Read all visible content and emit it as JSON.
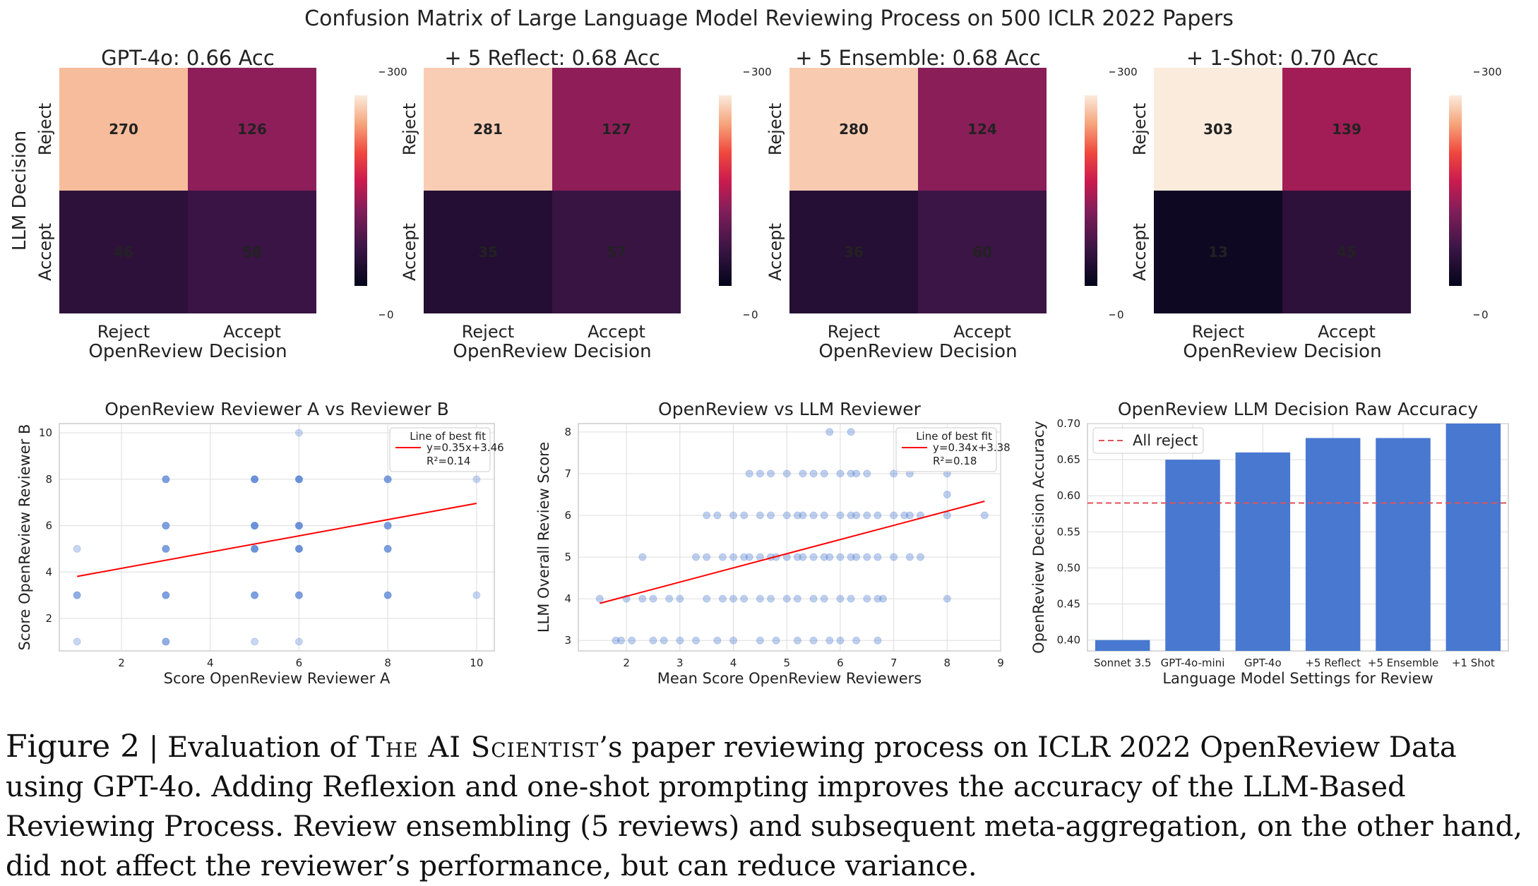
{
  "figure_title": "Confusion Matrix of Large Language Model Reviewing Process on 500 ICLR 2022 Papers",
  "colors": {
    "heat_high": "#faeadc",
    "heat_low": "#03051a",
    "point": "#4878d0",
    "fit_line": "#ff0000",
    "bar": "#4878d0",
    "baseline": "#e0525a",
    "grid": "#dddddd",
    "frame": "#cccccc"
  },
  "chart_data": [
    {
      "type": "heatmap",
      "title": "GPT-4o: 0.66 Acc",
      "xlabel": "OpenReview Decision",
      "ylabel": "LLM Decision",
      "x_categories": [
        "Reject",
        "Accept"
      ],
      "y_categories": [
        "Reject",
        "Accept"
      ],
      "values": [
        [
          270,
          126
        ],
        [
          46,
          58
        ]
      ],
      "colorbar": {
        "range": [
          0,
          300
        ],
        "tick_labels": [
          "300",
          "0"
        ]
      }
    },
    {
      "type": "heatmap",
      "title": "+ 5 Reflect: 0.68 Acc",
      "xlabel": "OpenReview Decision",
      "ylabel": "",
      "x_categories": [
        "Reject",
        "Accept"
      ],
      "y_categories": [
        "Reject",
        "Accept"
      ],
      "values": [
        [
          281,
          127
        ],
        [
          35,
          57
        ]
      ],
      "colorbar": {
        "range": [
          0,
          300
        ],
        "tick_labels": [
          "300",
          "0"
        ]
      }
    },
    {
      "type": "heatmap",
      "title": "+ 5 Ensemble: 0.68 Acc",
      "xlabel": "OpenReview Decision",
      "ylabel": "",
      "x_categories": [
        "Reject",
        "Accept"
      ],
      "y_categories": [
        "Reject",
        "Accept"
      ],
      "values": [
        [
          280,
          124
        ],
        [
          36,
          60
        ]
      ],
      "colorbar": {
        "range": [
          0,
          300
        ],
        "tick_labels": [
          "300",
          "0"
        ]
      }
    },
    {
      "type": "heatmap",
      "title": "+ 1-Shot: 0.70 Acc",
      "xlabel": "OpenReview Decision",
      "ylabel": "",
      "x_categories": [
        "Reject",
        "Accept"
      ],
      "y_categories": [
        "Reject",
        "Accept"
      ],
      "values": [
        [
          303,
          139
        ],
        [
          13,
          45
        ]
      ],
      "colorbar": {
        "range": [
          0,
          300
        ],
        "tick_labels": [
          "300",
          "0"
        ]
      }
    },
    {
      "type": "scatter",
      "title": "OpenReview Reviewer A vs Reviewer B",
      "xlabel": "Score OpenReview Reviewer A",
      "ylabel": "Score OpenReview Reviewer B",
      "xlim": [
        0.6,
        10.4
      ],
      "ylim": [
        0.6,
        10.4
      ],
      "xticks": [
        2,
        4,
        6,
        8,
        10
      ],
      "yticks": [
        2,
        4,
        6,
        8,
        10
      ],
      "grid": true,
      "legend_position": "top-right",
      "points": [
        [
          1,
          5,
          0.3
        ],
        [
          1,
          3,
          0.6
        ],
        [
          1,
          1,
          0.3
        ],
        [
          3,
          8,
          0.7
        ],
        [
          3,
          6,
          0.7
        ],
        [
          3,
          5,
          0.7
        ],
        [
          3,
          3,
          0.7
        ],
        [
          3,
          1,
          0.6
        ],
        [
          5,
          8,
          0.8
        ],
        [
          5,
          6,
          0.8
        ],
        [
          5,
          5,
          0.8
        ],
        [
          5,
          3,
          0.7
        ],
        [
          5,
          1,
          0.3
        ],
        [
          6,
          10,
          0.3
        ],
        [
          6,
          8,
          0.8
        ],
        [
          6,
          6,
          0.8
        ],
        [
          6,
          5,
          0.8
        ],
        [
          6,
          3,
          0.7
        ],
        [
          6,
          1,
          0.3
        ],
        [
          8,
          8,
          0.7
        ],
        [
          8,
          6,
          0.7
        ],
        [
          8,
          5,
          0.7
        ],
        [
          8,
          3,
          0.7
        ],
        [
          10,
          8,
          0.3
        ],
        [
          10,
          3,
          0.3
        ]
      ],
      "fit": {
        "slope": 0.35,
        "intercept": 3.46,
        "x_range": [
          1,
          10
        ]
      },
      "legend": {
        "title": "Line of best fit",
        "lines": [
          "y=0.35x+3.46",
          "R²=0.14"
        ]
      }
    },
    {
      "type": "scatter",
      "title": "OpenReview vs LLM Reviewer",
      "xlabel": "Mean Score OpenReview Reviewers",
      "ylabel": "LLM Overall Review Score",
      "xlim": [
        1.1,
        9.0
      ],
      "ylim": [
        2.75,
        8.2
      ],
      "xticks": [
        2,
        3,
        4,
        5,
        6,
        7,
        8,
        9
      ],
      "yticks": [
        3,
        4,
        5,
        6,
        7,
        8
      ],
      "grid": true,
      "legend_position": "top-right",
      "point_alpha": 0.35,
      "points": [
        [
          1.5,
          4
        ],
        [
          1.8,
          3
        ],
        [
          1.9,
          3
        ],
        [
          2,
          4
        ],
        [
          2.1,
          3
        ],
        [
          2.3,
          5
        ],
        [
          2.3,
          4
        ],
        [
          2.5,
          3
        ],
        [
          2.5,
          4
        ],
        [
          2.7,
          3
        ],
        [
          2.8,
          4
        ],
        [
          3,
          4
        ],
        [
          3,
          3
        ],
        [
          3.3,
          3
        ],
        [
          3.5,
          4
        ],
        [
          3.7,
          3
        ],
        [
          3.8,
          4
        ],
        [
          3.3,
          5
        ],
        [
          3.5,
          5
        ],
        [
          3.8,
          5
        ],
        [
          4,
          5
        ],
        [
          4.2,
          5
        ],
        [
          4.3,
          5
        ],
        [
          4.5,
          5
        ],
        [
          4.7,
          5
        ],
        [
          4.8,
          5
        ],
        [
          5,
          5
        ],
        [
          5.2,
          5
        ],
        [
          5.3,
          5
        ],
        [
          5.5,
          5
        ],
        [
          5.7,
          5
        ],
        [
          5.8,
          5
        ],
        [
          6,
          5
        ],
        [
          6.2,
          5
        ],
        [
          6.3,
          5
        ],
        [
          6.5,
          5
        ],
        [
          6.7,
          5
        ],
        [
          7,
          5
        ],
        [
          7.3,
          5
        ],
        [
          7.5,
          5
        ],
        [
          3.5,
          6
        ],
        [
          3.7,
          6
        ],
        [
          4,
          6
        ],
        [
          4.2,
          6
        ],
        [
          4.5,
          6
        ],
        [
          4.7,
          6
        ],
        [
          5,
          6
        ],
        [
          5.2,
          6
        ],
        [
          5.3,
          6
        ],
        [
          5.5,
          6
        ],
        [
          5.7,
          6
        ],
        [
          6,
          6
        ],
        [
          6.2,
          6
        ],
        [
          6.3,
          6
        ],
        [
          6.5,
          6
        ],
        [
          6.7,
          6
        ],
        [
          7,
          6
        ],
        [
          7.2,
          6
        ],
        [
          7.3,
          6
        ],
        [
          7.5,
          6
        ],
        [
          8,
          6
        ],
        [
          8.7,
          6
        ],
        [
          4,
          4
        ],
        [
          4.2,
          4
        ],
        [
          4.5,
          4
        ],
        [
          4.7,
          4
        ],
        [
          5,
          4
        ],
        [
          5.2,
          4
        ],
        [
          5.5,
          4
        ],
        [
          5.7,
          4
        ],
        [
          6,
          4
        ],
        [
          6.2,
          4
        ],
        [
          6.5,
          4
        ],
        [
          6.7,
          4
        ],
        [
          6.8,
          4
        ],
        [
          8,
          4
        ],
        [
          4,
          3
        ],
        [
          4.5,
          3
        ],
        [
          4.8,
          3
        ],
        [
          5.2,
          3
        ],
        [
          5.5,
          3
        ],
        [
          5.8,
          3
        ],
        [
          6,
          3
        ],
        [
          6.3,
          3
        ],
        [
          6.7,
          3
        ],
        [
          4.3,
          7
        ],
        [
          4.5,
          7
        ],
        [
          4.7,
          7
        ],
        [
          5,
          7
        ],
        [
          5.3,
          7
        ],
        [
          5.5,
          7
        ],
        [
          5.7,
          7
        ],
        [
          6,
          7
        ],
        [
          6.2,
          7
        ],
        [
          6.3,
          7
        ],
        [
          6.5,
          7
        ],
        [
          7,
          7
        ],
        [
          7.3,
          7
        ],
        [
          8,
          7
        ],
        [
          5.8,
          8
        ],
        [
          6.2,
          8
        ],
        [
          8,
          6.5
        ]
      ],
      "fit": {
        "slope": 0.34,
        "intercept": 3.38,
        "x_range": [
          1.5,
          8.7
        ]
      },
      "legend": {
        "title": "Line of best fit",
        "lines": [
          "y=0.34x+3.38",
          "R²=0.18"
        ]
      }
    },
    {
      "type": "bar",
      "title": "OpenReview LLM Decision Raw Accuracy",
      "xlabel": "Language Model Settings for Review",
      "ylabel": "OpenReview Decision Accuracy",
      "categories": [
        "Sonnet 3.5",
        "GPT-4o-mini",
        "GPT-4o",
        "+5 Reflect",
        "+5 Ensemble",
        "+1 Shot"
      ],
      "values": [
        0.4,
        0.65,
        0.66,
        0.68,
        0.68,
        0.7
      ],
      "ylim": [
        0.385,
        0.7
      ],
      "yticks": [
        "0.40",
        "0.45",
        "0.50",
        "0.55",
        "0.60",
        "0.65",
        "0.70"
      ],
      "baseline": {
        "label": "All reject",
        "value": 0.59
      },
      "grid": true,
      "legend_position": "top-left"
    }
  ],
  "caption": {
    "label": "Figure 2",
    "separator": " | ",
    "text_before": "Evaluation of ",
    "name": "The AI Scientist",
    "text_after": "’s paper reviewing process on ICLR 2022 OpenReview Data using GPT-4o. Adding Reflexion and one-shot prompting improves the accuracy of the LLM-Based Reviewing Process. Review ensembling (5 reviews) and subsequent meta-aggregation, on the other hand, did not affect the reviewer’s performance, but can reduce variance."
  }
}
